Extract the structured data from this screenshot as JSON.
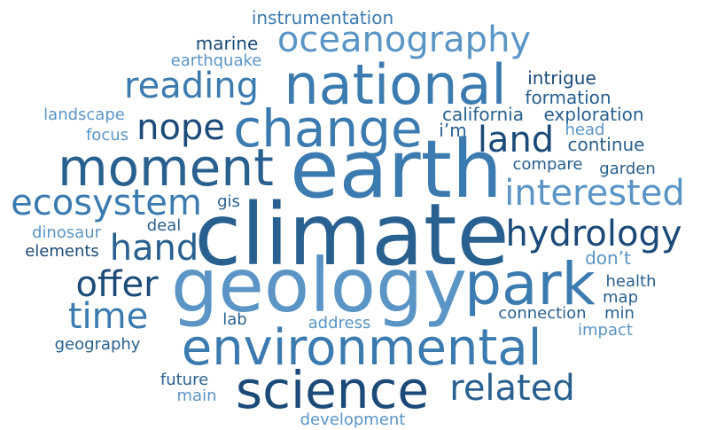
{
  "palette": {
    "darkest": "#1b4a78",
    "dark": "#28608f",
    "mid": "#3b7bb0",
    "light": "#5a95c6",
    "lightest": "#7fb2dc"
  },
  "words": [
    "instrumentation",
    "marine",
    "oceanography",
    "earthquake",
    "national",
    "intrigue",
    "reading",
    "formation",
    "landscape",
    "nope",
    "change",
    "california",
    "exploration",
    "focus",
    "i’m",
    "head",
    "land",
    "continue",
    "moment",
    "earth",
    "compare",
    "garden",
    "ecosystem",
    "interested",
    "gis",
    "deal",
    "climate",
    "hydrology",
    "dinosaur",
    "hand",
    "elements",
    "don’t",
    "offer",
    "geology",
    "park",
    "health",
    "map",
    "time",
    "lab",
    "address",
    "connection",
    "min",
    "impact",
    "geography",
    "environmental",
    "future",
    "science",
    "related",
    "main",
    "development"
  ]
}
